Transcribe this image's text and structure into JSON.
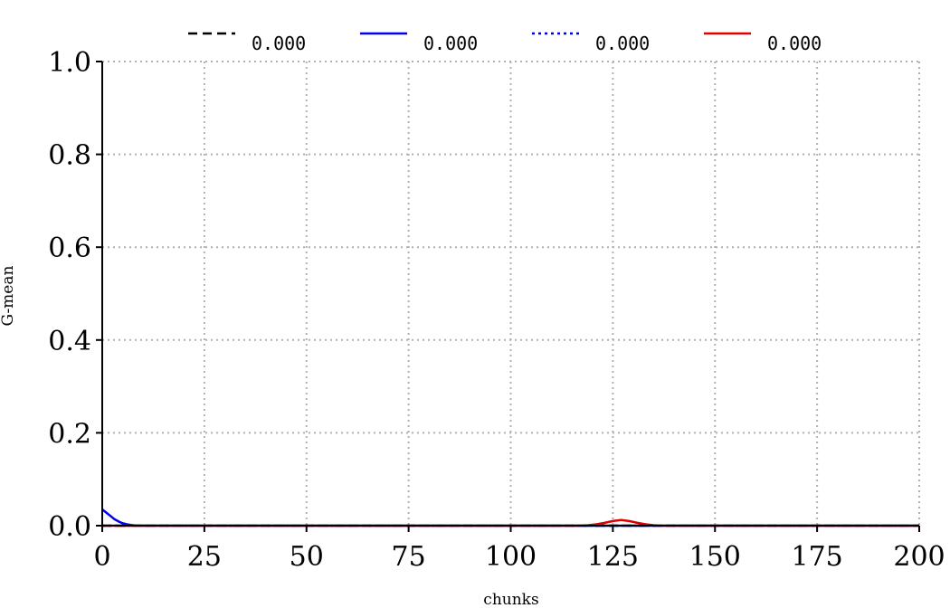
{
  "chart_data": {
    "type": "line",
    "title": "",
    "xlabel": "chunks",
    "ylabel": "G-mean",
    "xlim": [
      0,
      200
    ],
    "ylim": [
      0,
      1
    ],
    "x_ticks": [
      0,
      25,
      50,
      75,
      100,
      125,
      150,
      175,
      200
    ],
    "y_ticks": [
      0.0,
      0.2,
      0.4,
      0.6,
      0.8,
      1.0
    ],
    "x_tick_labels": [
      "0",
      "25",
      "50",
      "75",
      "100",
      "125",
      "150",
      "175",
      "200"
    ],
    "y_tick_labels": [
      "0.0",
      "0.2",
      "0.4",
      "0.6",
      "0.8",
      "1.0"
    ],
    "grid": true,
    "legend_position": "top",
    "series": [
      {
        "legend_label": "0.000",
        "color": "#000000",
        "line_style": "dashed",
        "x": [
          0,
          200
        ],
        "y": [
          0,
          0
        ]
      },
      {
        "legend_label": "0.000",
        "color": "#0000ee",
        "line_style": "solid",
        "x": [
          0,
          1,
          2,
          3,
          4,
          5,
          6,
          7,
          8,
          10,
          200
        ],
        "y": [
          0.035,
          0.028,
          0.021,
          0.014,
          0.009,
          0.005,
          0.003,
          0.0015,
          0.0005,
          0,
          0
        ]
      },
      {
        "legend_label": "0.000",
        "color": "#0000ee",
        "line_style": "dotted",
        "x": [
          0,
          200
        ],
        "y": [
          0,
          0
        ]
      },
      {
        "legend_label": "0.000",
        "color": "#dd0000",
        "line_style": "solid",
        "x": [
          0,
          116,
          119,
          121,
          123,
          125,
          127,
          129,
          131,
          133,
          135,
          137,
          200
        ],
        "y": [
          0,
          0,
          0.001,
          0.003,
          0.006,
          0.01,
          0.012,
          0.01,
          0.006,
          0.003,
          0.001,
          0,
          0
        ]
      }
    ]
  }
}
